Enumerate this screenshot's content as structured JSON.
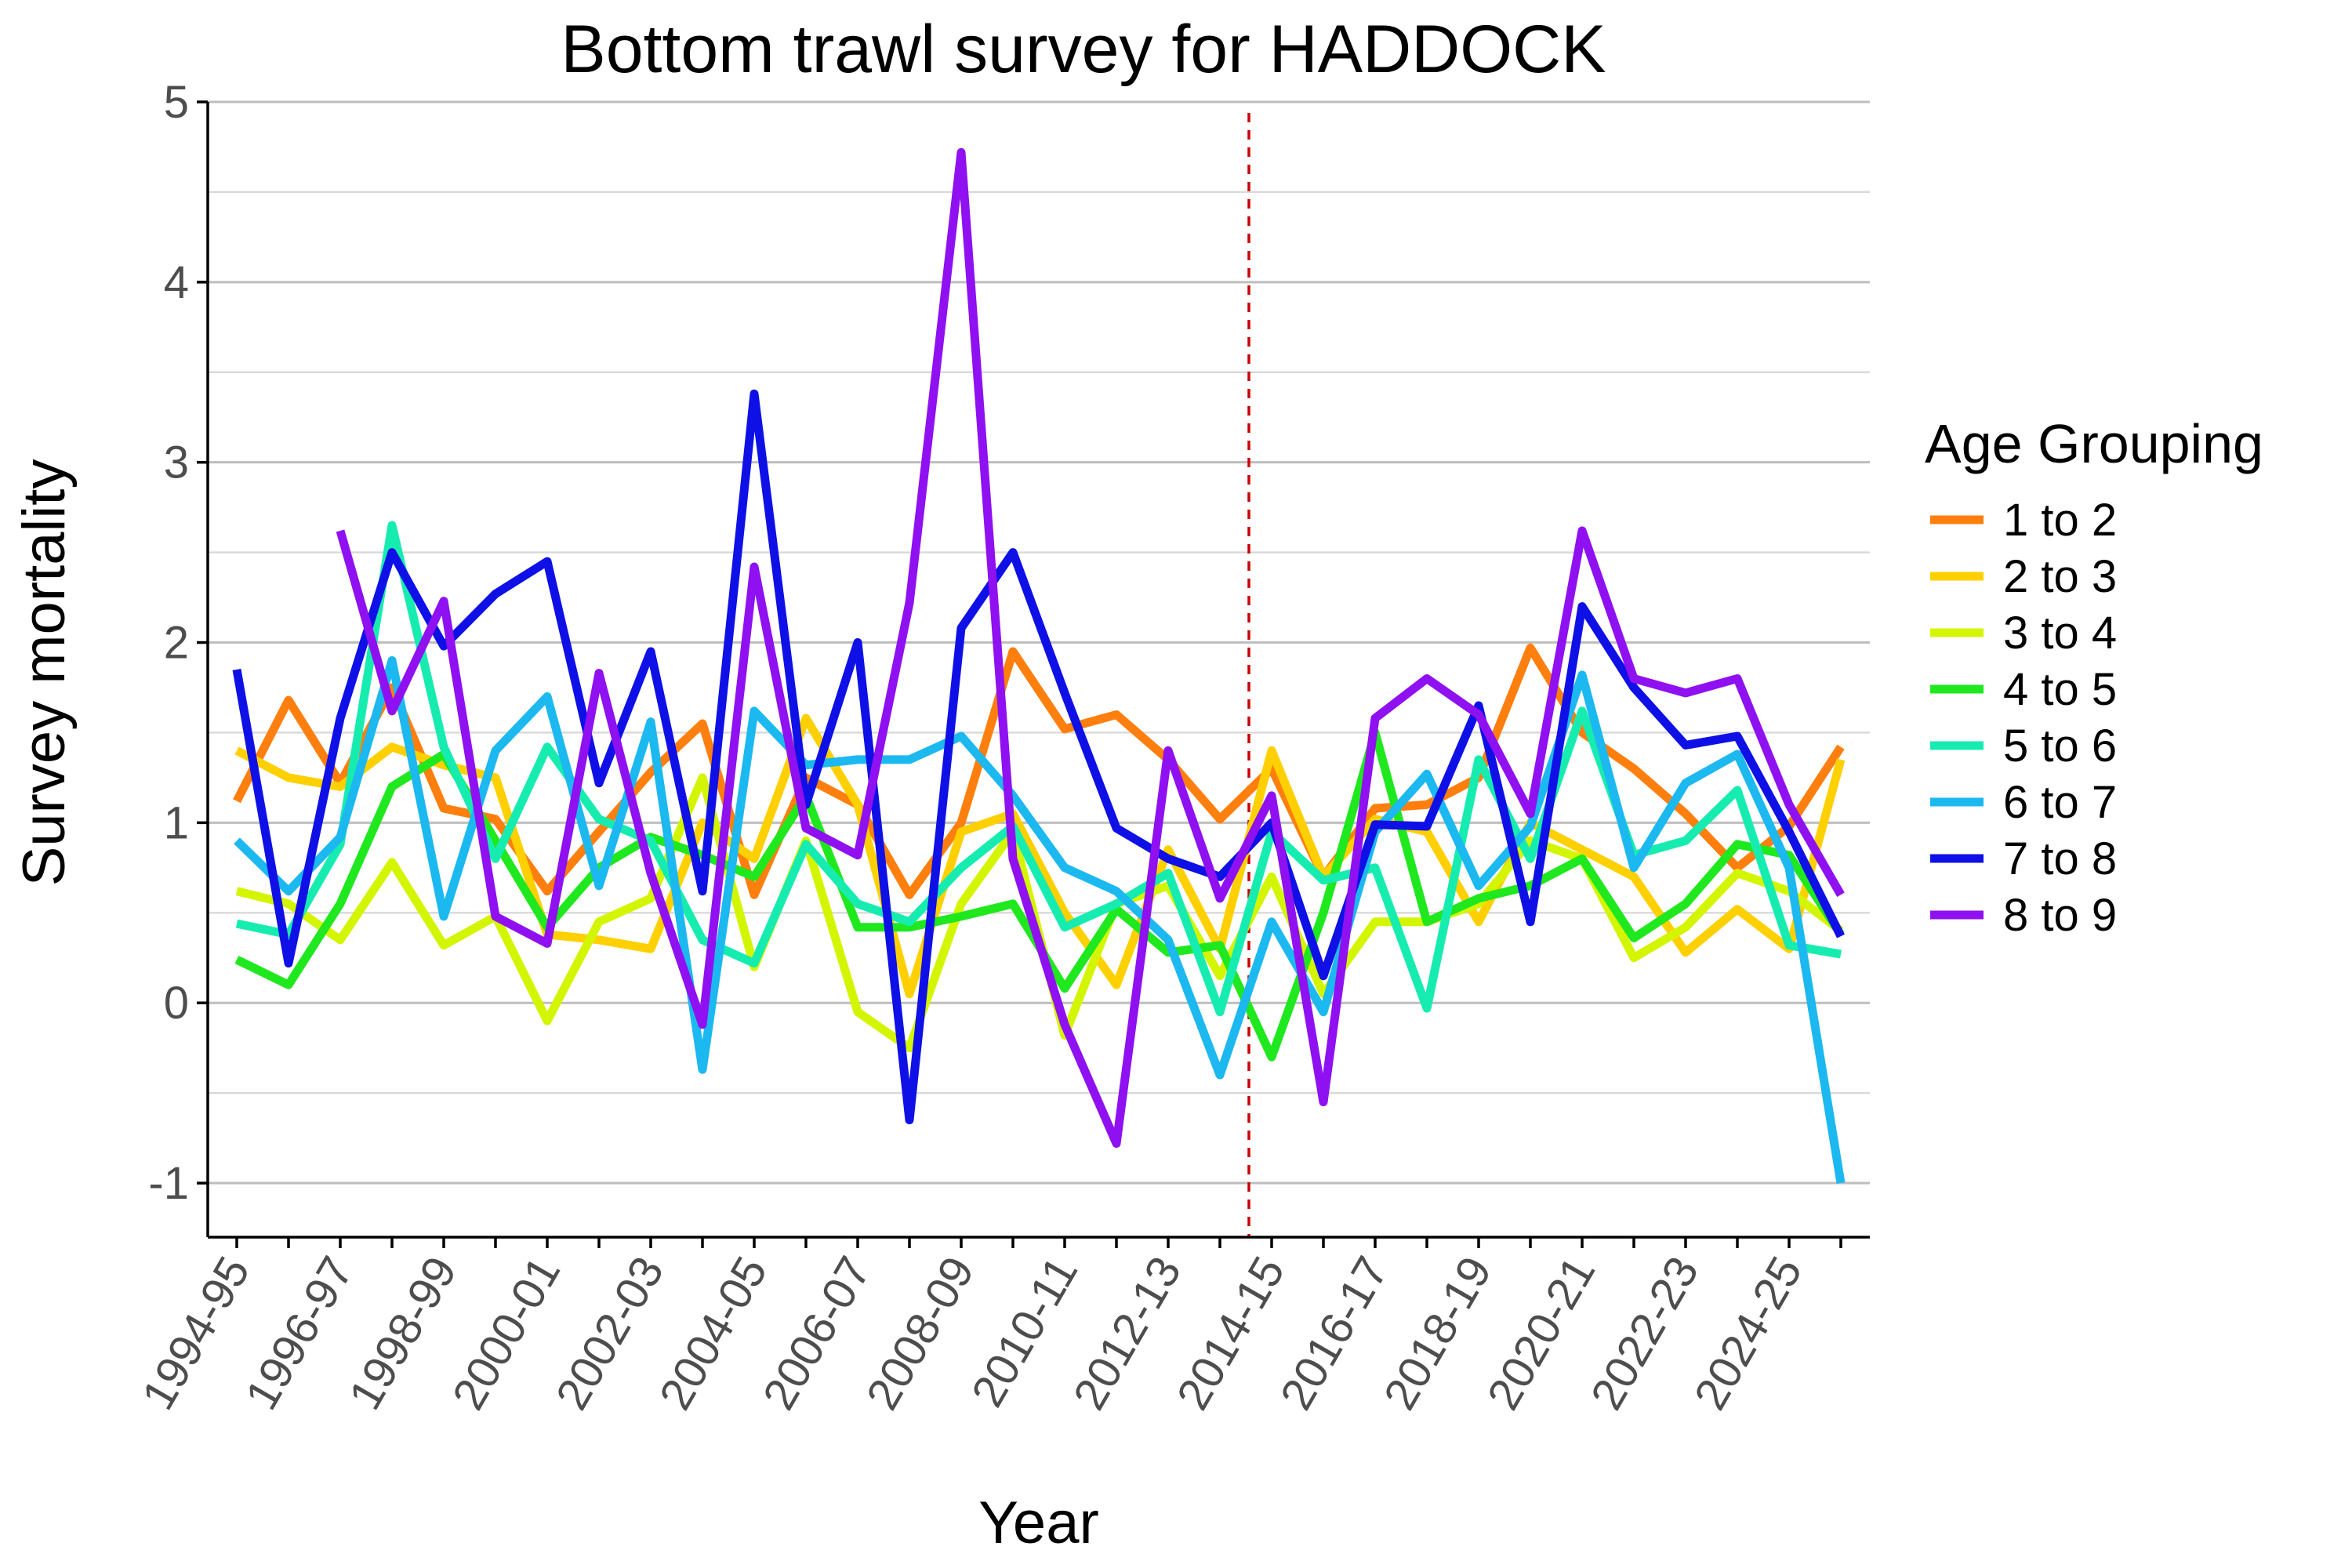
{
  "chart_data": {
    "type": "line",
    "title": "Bottom trawl survey for HADDOCK",
    "xlabel": "Year",
    "ylabel": "Survey mortality",
    "ylim": [
      -1.3,
      5
    ],
    "yticks": [
      -1,
      0,
      1,
      2,
      3,
      4,
      5
    ],
    "grid": "horizontal major and minor",
    "legend_title": "Age Grouping",
    "legend_position": "right",
    "reference_line": {
      "orientation": "vertical",
      "x": "2013-14/2014-15 boundary",
      "color": "#cc0000",
      "style": "dashed"
    },
    "x": [
      "1994-95",
      "1995-96",
      "1996-97",
      "1997-98",
      "1998-99",
      "1999-00",
      "2000-01",
      "2001-02",
      "2002-03",
      "2003-04",
      "2004-05",
      "2005-06",
      "2006-07",
      "2007-08",
      "2008-09",
      "2009-10",
      "2010-11",
      "2011-12",
      "2012-13",
      "2013-14",
      "2014-15",
      "2015-16",
      "2016-17",
      "2017-18",
      "2018-19",
      "2019-20",
      "2020-21",
      "2021-22",
      "2022-23",
      "2023-24",
      "2024-25",
      "2025-26"
    ],
    "x_tick_labels": [
      "1994-95",
      "1996-97",
      "1998-99",
      "2000-01",
      "2002-03",
      "2004-05",
      "2006-07",
      "2008-09",
      "2010-11",
      "2012-13",
      "2014-15",
      "2016-17",
      "2018-19",
      "2020-21",
      "2022-23",
      "2024-25"
    ],
    "series": [
      {
        "name": "1 to 2",
        "color": "#ff7f0e",
        "values": [
          1.12,
          1.68,
          1.22,
          1.75,
          1.08,
          1.02,
          0.62,
          0.95,
          1.28,
          1.55,
          0.6,
          1.25,
          1.1,
          0.6,
          1.0,
          1.95,
          1.52,
          1.6,
          1.35,
          1.02,
          1.3,
          0.7,
          1.08,
          1.1,
          1.25,
          1.97,
          1.5,
          1.3,
          1.05,
          0.75,
          0.98,
          1.42
        ]
      },
      {
        "name": "2 to 3",
        "color": "#ffd000",
        "values": [
          1.4,
          1.25,
          1.2,
          1.42,
          1.32,
          1.25,
          0.38,
          0.35,
          0.3,
          1.0,
          0.8,
          1.58,
          1.1,
          0.05,
          0.95,
          1.05,
          0.5,
          0.1,
          0.85,
          0.3,
          1.4,
          0.7,
          1.02,
          0.95,
          0.45,
          1.0,
          0.85,
          0.7,
          0.28,
          0.52,
          0.3,
          1.35
        ]
      },
      {
        "name": "3 to 4",
        "color": "#d4f500",
        "values": [
          0.62,
          0.55,
          0.35,
          0.78,
          0.32,
          0.48,
          -0.1,
          0.45,
          0.58,
          1.25,
          0.2,
          0.9,
          -0.05,
          -0.25,
          0.55,
          0.95,
          -0.18,
          0.55,
          0.65,
          0.15,
          0.7,
          0.05,
          0.45,
          0.45,
          0.55,
          0.9,
          0.8,
          0.25,
          0.42,
          0.72,
          0.62,
          0.4
        ]
      },
      {
        "name": "4 to 5",
        "color": "#1fe81f",
        "values": [
          0.24,
          0.1,
          0.55,
          1.2,
          1.38,
          0.9,
          0.42,
          0.75,
          0.92,
          0.82,
          0.7,
          1.15,
          0.42,
          0.42,
          0.48,
          0.55,
          0.08,
          0.52,
          0.28,
          0.32,
          -0.3,
          0.5,
          1.5,
          0.45,
          0.58,
          0.65,
          0.8,
          0.36,
          0.55,
          0.88,
          0.82,
          0.38
        ]
      },
      {
        "name": "5 to 6",
        "color": "#17ecb0",
        "values": [
          0.44,
          0.38,
          0.88,
          2.65,
          1.42,
          0.8,
          1.42,
          1.02,
          0.9,
          0.35,
          0.22,
          0.88,
          0.55,
          0.45,
          0.75,
          0.98,
          0.42,
          0.55,
          0.72,
          -0.05,
          0.95,
          0.68,
          0.75,
          -0.03,
          1.35,
          0.8,
          1.62,
          0.82,
          0.9,
          1.18,
          0.32,
          0.27
        ]
      },
      {
        "name": "6 to 7",
        "color": "#1cb8f0",
        "values": [
          0.9,
          0.62,
          0.92,
          1.9,
          0.48,
          1.4,
          1.7,
          0.65,
          1.56,
          -0.37,
          1.62,
          1.32,
          1.35,
          1.35,
          1.48,
          1.15,
          0.75,
          0.62,
          0.35,
          -0.4,
          0.45,
          -0.05,
          0.95,
          1.27,
          0.65,
          0.98,
          1.82,
          0.75,
          1.22,
          1.38,
          0.75,
          -1.0
        ]
      },
      {
        "name": "7 to 8",
        "color": "#0e10e6",
        "values": [
          1.85,
          0.22,
          1.58,
          2.5,
          1.98,
          2.27,
          2.45,
          1.22,
          1.95,
          0.62,
          3.38,
          1.1,
          2.0,
          -0.65,
          2.08,
          2.5,
          1.72,
          0.97,
          0.8,
          0.7,
          1.0,
          0.15,
          0.99,
          0.98,
          1.65,
          0.45,
          2.2,
          1.75,
          1.43,
          1.48,
          0.95,
          0.37
        ]
      },
      {
        "name": "8 to 9",
        "color": "#8f10f0",
        "values": [
          null,
          null,
          2.62,
          1.62,
          2.23,
          0.48,
          0.33,
          1.83,
          0.72,
          -0.12,
          2.42,
          0.97,
          0.82,
          2.22,
          4.72,
          0.8,
          -0.12,
          -0.78,
          1.4,
          0.58,
          1.15,
          -0.55,
          1.58,
          1.8,
          1.6,
          1.05,
          2.62,
          1.8,
          1.72,
          1.8,
          1.1,
          0.6
        ]
      }
    ]
  }
}
